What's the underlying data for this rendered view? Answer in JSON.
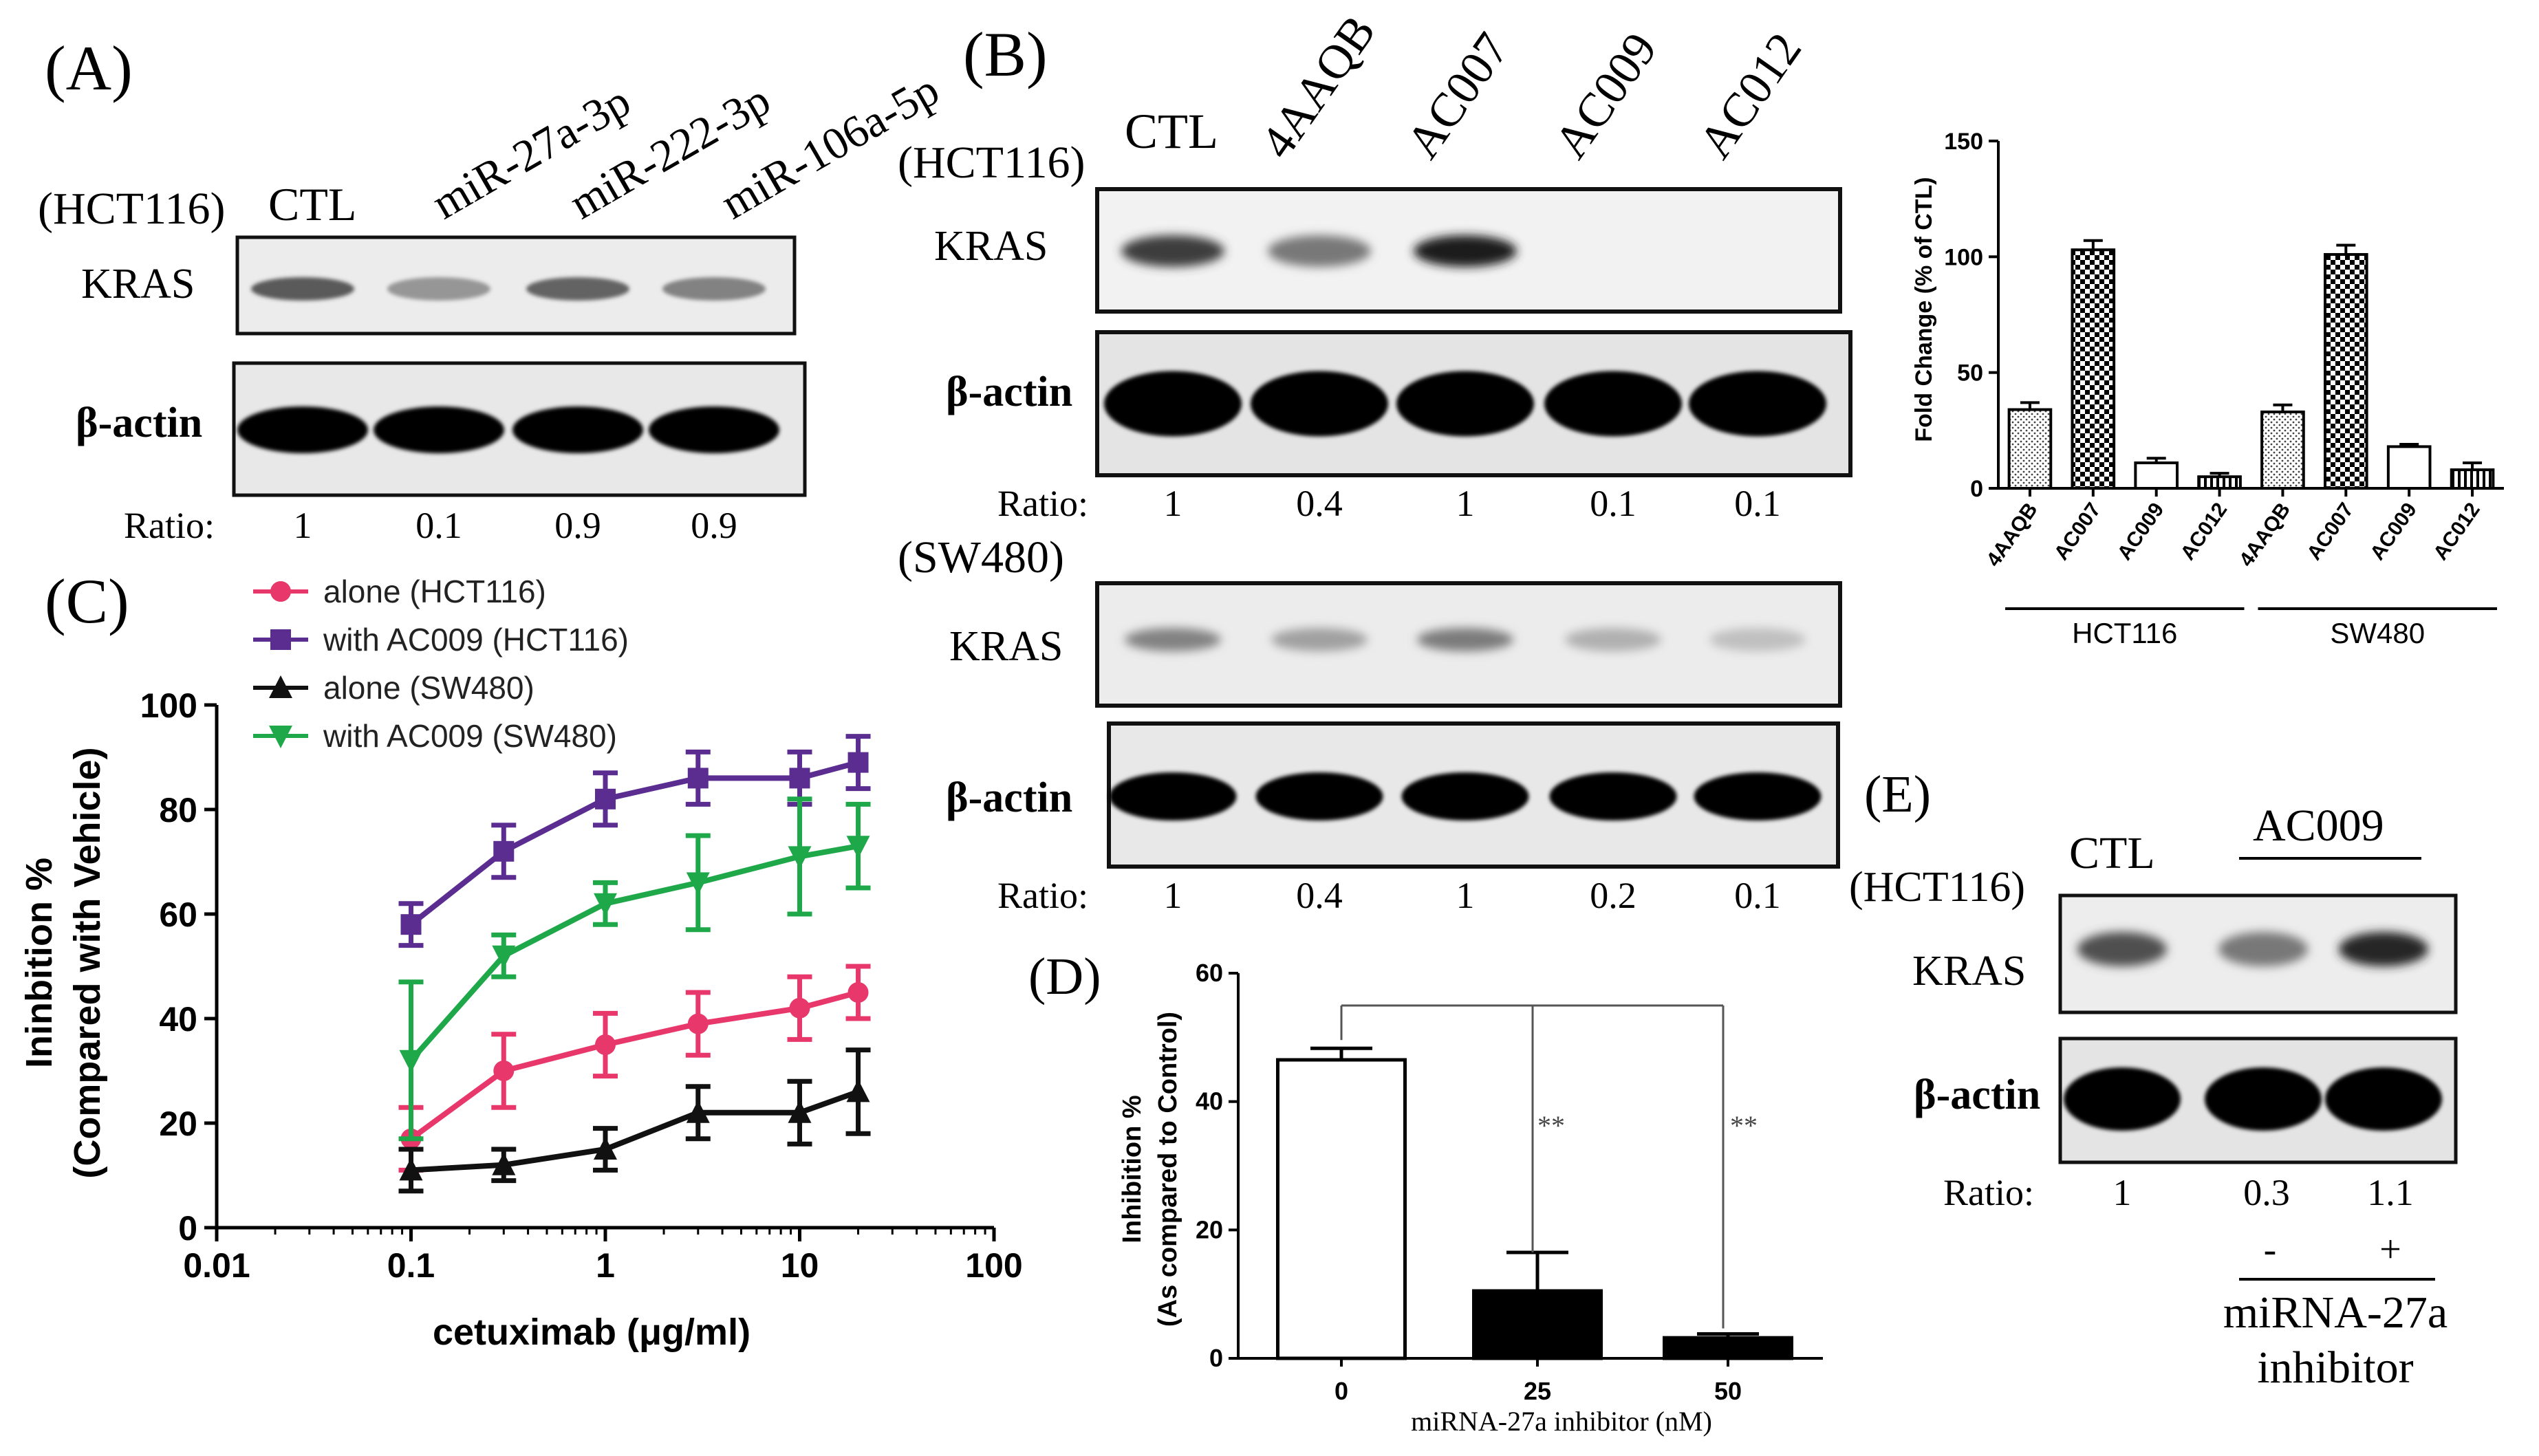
{
  "panelA": {
    "letter": "(A)",
    "cell": "(HCT116)",
    "lanes": [
      "CTL",
      "miR-27a-3p",
      "miR-222-3p",
      "miR-106a-5p"
    ],
    "kras_label": "KRAS",
    "actin_label": "β-actin",
    "ratio_label": "Ratio:",
    "ratios": [
      "1",
      "0.1",
      "0.9",
      "0.9"
    ],
    "kras_intensity": [
      0.55,
      0.25,
      0.5,
      0.35
    ]
  },
  "panelB": {
    "letter": "(B)",
    "lanes": [
      "CTL",
      "4AAQB",
      "AC007",
      "AC009",
      "AC012"
    ],
    "blots": [
      {
        "cell": "(HCT116)",
        "kras_label": "KRAS",
        "actin_label": "β-actin",
        "ratio_label": "Ratio:",
        "ratios": [
          "1",
          "0.4",
          "1",
          "0.1",
          "0.1"
        ],
        "kras_intensity": [
          0.7,
          0.4,
          0.85,
          0.02,
          0.02
        ]
      },
      {
        "cell": "(SW480)",
        "kras_label": "KRAS",
        "actin_label": "β-actin",
        "ratio_label": "Ratio:",
        "ratios": [
          "1",
          "0.4",
          "1",
          "0.2",
          "0.1"
        ],
        "kras_intensity": [
          0.35,
          0.2,
          0.38,
          0.12,
          0.04
        ]
      }
    ]
  },
  "chart_data": [
    {
      "id": "B-bar",
      "type": "bar",
      "ylabel": "Fold Change (% of CTL)",
      "ylim": [
        0,
        150
      ],
      "yticks": [
        0,
        50,
        100,
        150
      ],
      "categories": [
        "4AAQB",
        "AC007",
        "AC009",
        "AC012",
        "4AAQB",
        "AC007",
        "AC009",
        "AC012"
      ],
      "groups": [
        "HCT116",
        "SW480"
      ],
      "values": [
        34,
        103,
        11,
        5,
        33,
        101,
        18,
        8
      ],
      "errors": [
        3,
        4,
        2,
        1.5,
        3,
        4,
        1,
        3
      ],
      "patterns": [
        "dots",
        "checker",
        "white",
        "stripes",
        "dots",
        "checker",
        "white",
        "stripes"
      ]
    },
    {
      "id": "C-dose",
      "type": "line",
      "xlabel": "cetuximab (μg/ml)",
      "ylabel_lines": [
        "Ininbition %",
        "(Compared with Vehicle)"
      ],
      "xscale": "log",
      "xlim": [
        0.01,
        100
      ],
      "xticks": [
        "0.01",
        "0.1",
        "1",
        "10",
        "100"
      ],
      "ylim": [
        0,
        100
      ],
      "yticks": [
        0,
        20,
        40,
        60,
        80,
        100
      ],
      "x": [
        0.1,
        0.3,
        1,
        3,
        10,
        20
      ],
      "series": [
        {
          "name": "alone (HCT116)",
          "color": "#e8386b",
          "marker": "circle",
          "values": [
            17,
            30,
            35,
            39,
            42,
            45
          ],
          "errors": [
            6,
            7,
            6,
            6,
            6,
            5
          ]
        },
        {
          "name": "with AC009 (HCT116)",
          "color": "#5b2d91",
          "marker": "square",
          "values": [
            58,
            72,
            82,
            86,
            86,
            89
          ],
          "errors": [
            4,
            5,
            5,
            5,
            5,
            5
          ]
        },
        {
          "name": "alone (SW480)",
          "color": "#111111",
          "marker": "triangle-up",
          "values": [
            11,
            12,
            15,
            22,
            22,
            26
          ],
          "errors": [
            4,
            3,
            4,
            5,
            6,
            8
          ]
        },
        {
          "name": "with AC009 (SW480)",
          "color": "#1fa84a",
          "marker": "triangle-down",
          "values": [
            32,
            52,
            62,
            66,
            71,
            73
          ],
          "errors": [
            15,
            4,
            4,
            9,
            11,
            8
          ]
        }
      ]
    },
    {
      "id": "D-bar",
      "type": "bar",
      "xlabel": "miRNA-27a  inhibitor (nM)",
      "ylabel_lines": [
        "Inhibition %",
        "(As compared to Control)"
      ],
      "ylim": [
        0,
        60
      ],
      "yticks": [
        0,
        20,
        40,
        60
      ],
      "categories": [
        "0",
        "25",
        "50"
      ],
      "values": [
        46.5,
        10.5,
        3.2
      ],
      "errors": [
        1.8,
        6,
        0.6
      ],
      "fills": [
        "#ffffff",
        "#000000",
        "#000000"
      ],
      "annotations": [
        "**",
        "**"
      ]
    }
  ],
  "panelC": {
    "letter": "(C)"
  },
  "panelD": {
    "letter": "(D)"
  },
  "panelE": {
    "letter": "(E)",
    "cell": "(HCT116)",
    "ctl": "CTL",
    "treatment": "AC009",
    "kras_label": "KRAS",
    "actin_label": "β-actin",
    "ratio_label": "Ratio:",
    "ratios": [
      "1",
      "0.3",
      "1.1"
    ],
    "signs": [
      "-",
      "+"
    ],
    "inhibitor_line1": "miRNA-27a",
    "inhibitor_line2": "inhibitor",
    "kras_intensity": [
      0.6,
      0.4,
      0.8
    ]
  }
}
